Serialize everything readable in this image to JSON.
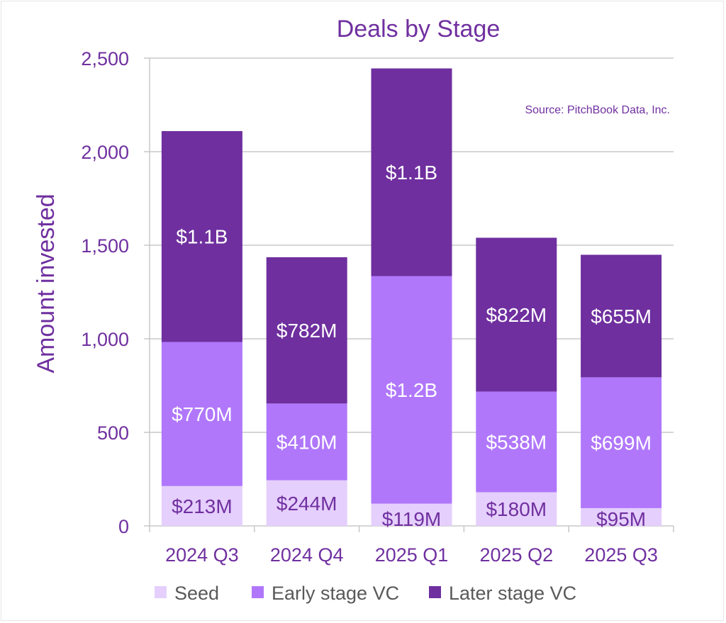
{
  "chart_data": {
    "type": "bar",
    "stacked": true,
    "title": "Deals by Stage",
    "ylabel": "Amount invested",
    "xlabel": "",
    "source": "Source: PitchBook Data, Inc.",
    "ylim": [
      0,
      2500
    ],
    "yticks": [
      0,
      500,
      1000,
      1500,
      2000,
      2500
    ],
    "ytick_labels": [
      "0",
      "500",
      "1,000",
      "1,500",
      "2,000",
      "2,500"
    ],
    "grid": true,
    "legend_position": "bottom",
    "categories": [
      "2024 Q3",
      "2024 Q4",
      "2025 Q1",
      "2025 Q2",
      "2025 Q3"
    ],
    "series": [
      {
        "name": "Seed",
        "color": "#e5cffc",
        "label_color": "#7030a0",
        "values": [
          213,
          244,
          119,
          180,
          95
        ],
        "labels": [
          "$213M",
          "$244M",
          "$119M",
          "$180M",
          "$95M"
        ]
      },
      {
        "name": "Early stage VC",
        "color": "#b077fb",
        "label_color": "#ffffff",
        "values": [
          770,
          410,
          1216,
          538,
          699
        ],
        "labels": [
          "$770M",
          "$410M",
          "$1.2B",
          "$538M",
          "$699M"
        ]
      },
      {
        "name": "Later stage VC",
        "color": "#6f2f9f",
        "label_color": "#ffffff",
        "values": [
          1127,
          782,
          1110,
          822,
          655
        ],
        "labels": [
          "$1.1B",
          "$782M",
          "$1.1B",
          "$822M",
          "$655M"
        ]
      }
    ]
  }
}
